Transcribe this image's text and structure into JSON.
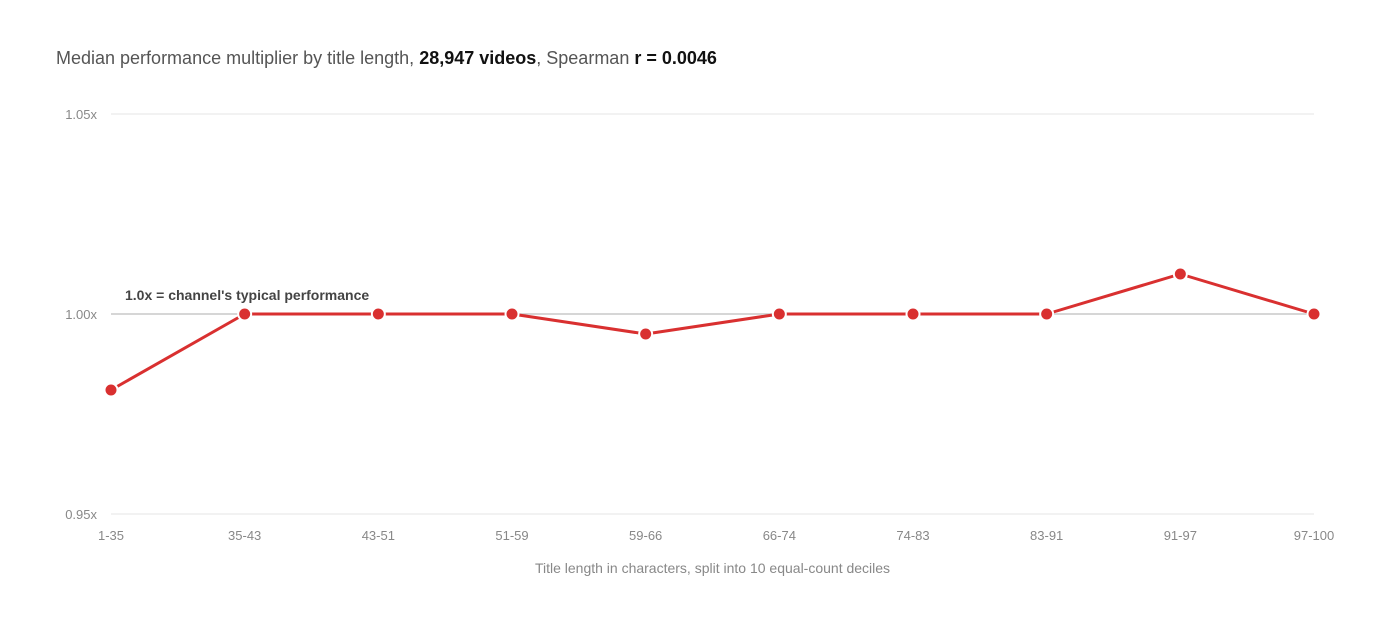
{
  "title": {
    "prefix": "Median performance multiplier by title length, ",
    "count": "28,947 videos",
    "mid": ", Spearman ",
    "stat": "r = 0.0046"
  },
  "colors": {
    "line": "#d93030",
    "grid": "#e6e6e6",
    "baseline": "#bdbdbd"
  },
  "chart_data": {
    "type": "line",
    "title": "Median performance multiplier by title length, 28,947 videos, Spearman r = 0.0046",
    "xlabel": "Title length in characters, split into 10 equal-count deciles",
    "ylabel": "",
    "categories": [
      "1-35",
      "35-43",
      "43-51",
      "51-59",
      "59-66",
      "66-74",
      "74-83",
      "83-91",
      "91-97",
      "97-100"
    ],
    "series": [
      {
        "values": [
          0.981,
          1.0,
          1.0,
          1.0,
          0.995,
          1.0,
          1.0,
          1.0,
          1.01,
          1.0
        ]
      }
    ],
    "ylim": [
      0.95,
      1.05
    ],
    "yticks": [
      {
        "value": 1.05,
        "label": "1.05x"
      },
      {
        "value": 1.0,
        "label": "1.00x"
      },
      {
        "value": 0.95,
        "label": "0.95x"
      }
    ],
    "reference_line": {
      "value": 1.0,
      "label": "1.0x = channel's typical performance"
    },
    "grid": true,
    "legend": "none"
  }
}
